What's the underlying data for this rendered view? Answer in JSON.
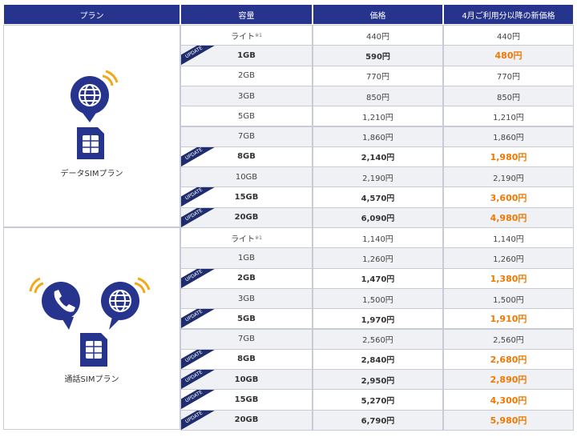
{
  "header": [
    "プラン",
    "容量",
    "価格",
    "4月ご利用分以降の新価格"
  ],
  "badge_label": "UPDATE",
  "plans": [
    {
      "name": "データSIMプラン",
      "icon": "data",
      "rows": [
        {
          "capacity": "ライト",
          "note": "※1",
          "price": "440円",
          "new_price": "440円",
          "updated": false
        },
        {
          "capacity": "1GB",
          "price": "590円",
          "new_price": "480円",
          "updated": true
        },
        {
          "capacity": "2GB",
          "price": "770円",
          "new_price": "770円",
          "updated": false
        },
        {
          "capacity": "3GB",
          "price": "850円",
          "new_price": "850円",
          "updated": false
        },
        {
          "capacity": "5GB",
          "price": "1,210円",
          "new_price": "1,210円",
          "updated": false
        },
        {
          "capacity": "7GB",
          "price": "1,860円",
          "new_price": "1,860円",
          "updated": false
        },
        {
          "capacity": "8GB",
          "price": "2,140円",
          "new_price": "1,980円",
          "updated": true
        },
        {
          "capacity": "10GB",
          "price": "2,190円",
          "new_price": "2,190円",
          "updated": false
        },
        {
          "capacity": "15GB",
          "price": "4,570円",
          "new_price": "3,600円",
          "updated": true
        },
        {
          "capacity": "20GB",
          "price": "6,090円",
          "new_price": "4,980円",
          "updated": true
        }
      ]
    },
    {
      "name": "通話SIMプラン",
      "icon": "voice",
      "rows": [
        {
          "capacity": "ライト",
          "note": "※1",
          "price": "1,140円",
          "new_price": "1,140円",
          "updated": false
        },
        {
          "capacity": "1GB",
          "price": "1,260円",
          "new_price": "1,260円",
          "updated": false
        },
        {
          "capacity": "2GB",
          "price": "1,470円",
          "new_price": "1,380円",
          "updated": true
        },
        {
          "capacity": "3GB",
          "price": "1,500円",
          "new_price": "1,500円",
          "updated": false
        },
        {
          "capacity": "5GB",
          "price": "1,970円",
          "new_price": "1,910円",
          "updated": true
        },
        {
          "capacity": "7GB",
          "price": "2,560円",
          "new_price": "2,560円",
          "updated": false
        },
        {
          "capacity": "8GB",
          "price": "2,840円",
          "new_price": "2,680円",
          "updated": true
        },
        {
          "capacity": "10GB",
          "price": "2,950円",
          "new_price": "2,890円",
          "updated": true
        },
        {
          "capacity": "15GB",
          "price": "5,270円",
          "new_price": "4,300円",
          "updated": true
        },
        {
          "capacity": "20GB",
          "price": "6,790円",
          "new_price": "5,980円",
          "updated": true
        }
      ]
    }
  ]
}
